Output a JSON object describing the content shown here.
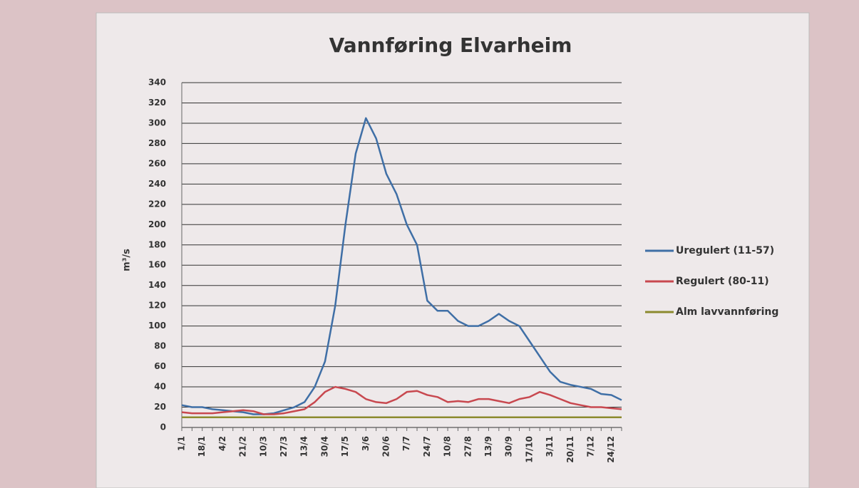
{
  "chart_data": {
    "type": "line",
    "title": "Vannføring Elvarheim",
    "y_label": "m³/s",
    "categories": [
      "1/1",
      null,
      "18/1",
      null,
      "4/2",
      null,
      "21/2",
      null,
      "10/3",
      null,
      "27/3",
      null,
      "13/4",
      null,
      "30/4",
      null,
      "17/5",
      null,
      "3/6",
      null,
      "20/6",
      null,
      "7/7",
      null,
      "24/7",
      null,
      "10/8",
      null,
      "27/8",
      null,
      "13/9",
      null,
      "30/9",
      null,
      "17/10",
      null,
      "3/11",
      null,
      "20/11",
      null,
      "7/12",
      null,
      "24/12",
      null
    ],
    "series": [
      {
        "name": "Uregulert (11-57)",
        "color": "#3f6fa6",
        "values": [
          22,
          20,
          20,
          18,
          17,
          16,
          15,
          13,
          13,
          14,
          17,
          20,
          25,
          40,
          65,
          120,
          200,
          270,
          305,
          285,
          250,
          230,
          200,
          180,
          125,
          115,
          115,
          105,
          100,
          100,
          105,
          112,
          105,
          100,
          85,
          70,
          55,
          45,
          42,
          40,
          38,
          33,
          32,
          27
        ]
      },
      {
        "name": "Regulert (80-11)",
        "color": "#c8484f",
        "values": [
          15,
          14,
          14,
          14,
          15,
          16,
          17,
          16,
          13,
          13,
          14,
          16,
          18,
          25,
          35,
          40,
          38,
          35,
          28,
          25,
          24,
          28,
          35,
          36,
          32,
          30,
          25,
          26,
          25,
          28,
          28,
          26,
          24,
          28,
          30,
          35,
          32,
          28,
          24,
          22,
          20,
          20,
          19,
          18
        ]
      },
      {
        "name": "Alm lavvannføring",
        "color": "#8c8a2e",
        "values": [
          10,
          10,
          10,
          10,
          10,
          10,
          10,
          10,
          10,
          10,
          10,
          10,
          10,
          10,
          10,
          10,
          10,
          10,
          10,
          10,
          10,
          10,
          10,
          10,
          10,
          10,
          10,
          10,
          10,
          10,
          10,
          10,
          10,
          10,
          10,
          10,
          10,
          10,
          10,
          10,
          10,
          10,
          10,
          10
        ]
      }
    ],
    "ylim": [
      0,
      340
    ],
    "yticks": [
      0,
      20,
      40,
      60,
      80,
      100,
      120,
      140,
      160,
      180,
      200,
      220,
      240,
      260,
      280,
      300,
      320,
      340
    ],
    "grid": true,
    "legend": "right"
  }
}
